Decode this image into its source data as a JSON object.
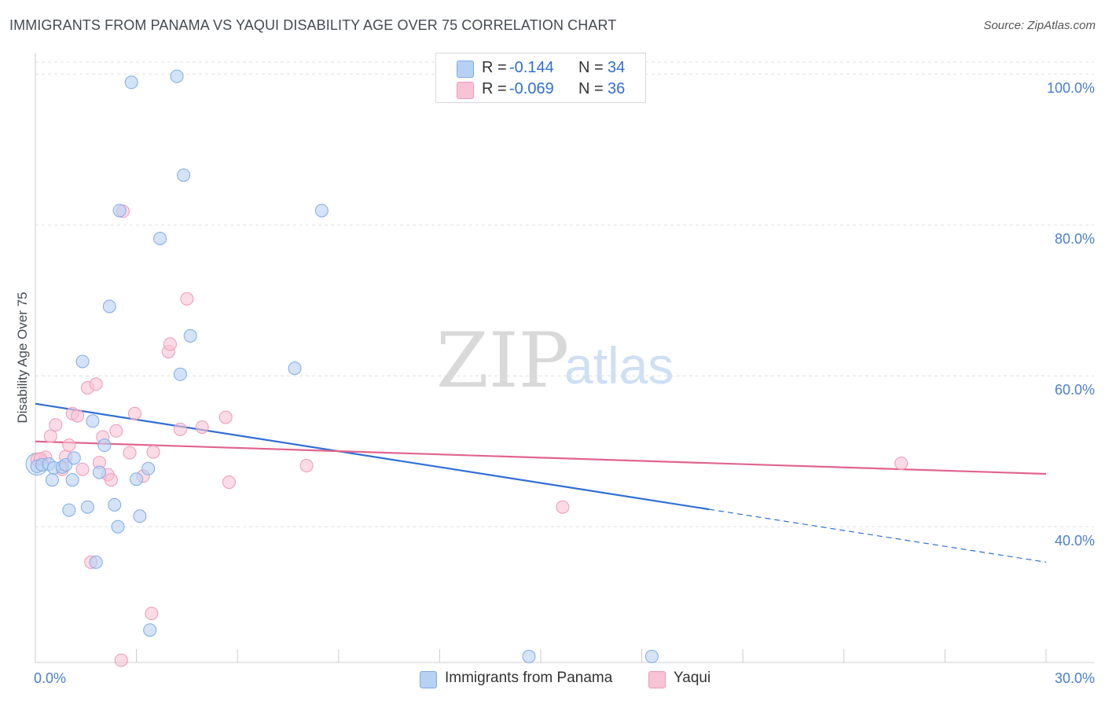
{
  "header": {
    "title": "IMMIGRANTS FROM PANAMA VS YAQUI DISABILITY AGE OVER 75 CORRELATION CHART",
    "source": "Source: ZipAtlas.com"
  },
  "watermark": {
    "zip": "ZIP",
    "atlas": "atlas"
  },
  "legend": {
    "r_label": "R =",
    "n_label": "N =",
    "series": [
      {
        "name": "Immigrants from Panama",
        "r": "-0.144",
        "n": "34"
      },
      {
        "name": "Yaqui",
        "r": "-0.069",
        "n": "36"
      }
    ]
  },
  "colors": {
    "blue_fill": "#b7d1f3",
    "blue_stroke": "#7eaae6",
    "blue_line": "#2f6fd6",
    "pink_fill": "#f8c3d4",
    "pink_stroke": "#ee9ab6",
    "pink_line": "#e0648f",
    "grid": "#e0e0e0",
    "axis_text": "#4a7fd0"
  },
  "chart_data": {
    "type": "scatter",
    "title": "IMMIGRANTS FROM PANAMA VS YAQUI DISABILITY AGE OVER 75 CORRELATION CHART",
    "xlabel": "",
    "ylabel": "Disability Age Over 75",
    "xlim": [
      0,
      30
    ],
    "ylim": [
      22,
      102
    ],
    "x_tick_labels": [
      "0.0%",
      "30.0%"
    ],
    "y_ticks": [
      {
        "value": 40,
        "label": "40.0%"
      },
      {
        "value": 60,
        "label": "60.0%"
      },
      {
        "value": 80,
        "label": "80.0%"
      },
      {
        "value": 100,
        "label": "100.0%"
      }
    ],
    "series": [
      {
        "name": "Immigrants from Panama",
        "color": "blue",
        "points": [
          {
            "x": 0.05,
            "y": 48.0
          },
          {
            "x": 0.2,
            "y": 48.2
          },
          {
            "x": 0.4,
            "y": 48.3
          },
          {
            "x": 0.55,
            "y": 47.8
          },
          {
            "x": 0.8,
            "y": 47.9
          },
          {
            "x": 0.9,
            "y": 48.2
          },
          {
            "x": 0.5,
            "y": 46.2
          },
          {
            "x": 1.15,
            "y": 49.1
          },
          {
            "x": 1.1,
            "y": 46.2
          },
          {
            "x": 1.0,
            "y": 42.2
          },
          {
            "x": 1.55,
            "y": 42.6
          },
          {
            "x": 1.4,
            "y": 61.9
          },
          {
            "x": 1.7,
            "y": 54.0
          },
          {
            "x": 1.9,
            "y": 47.2
          },
          {
            "x": 2.05,
            "y": 50.8
          },
          {
            "x": 2.2,
            "y": 69.2
          },
          {
            "x": 2.35,
            "y": 42.9
          },
          {
            "x": 2.5,
            "y": 81.9
          },
          {
            "x": 2.45,
            "y": 40.0
          },
          {
            "x": 2.85,
            "y": 98.9
          },
          {
            "x": 3.0,
            "y": 46.3
          },
          {
            "x": 3.1,
            "y": 41.4
          },
          {
            "x": 3.35,
            "y": 47.7
          },
          {
            "x": 3.4,
            "y": 26.3
          },
          {
            "x": 3.7,
            "y": 78.2
          },
          {
            "x": 4.2,
            "y": 99.7
          },
          {
            "x": 4.3,
            "y": 60.2
          },
          {
            "x": 4.4,
            "y": 86.6
          },
          {
            "x": 4.6,
            "y": 65.3
          },
          {
            "x": 7.7,
            "y": 61.0
          },
          {
            "x": 8.5,
            "y": 81.9
          },
          {
            "x": 14.65,
            "y": 22.8
          },
          {
            "x": 18.3,
            "y": 22.8
          },
          {
            "x": 1.8,
            "y": 35.3
          }
        ]
      },
      {
        "name": "Yaqui",
        "color": "pink",
        "points": [
          {
            "x": 0.05,
            "y": 48.9
          },
          {
            "x": 0.3,
            "y": 49.2
          },
          {
            "x": 0.45,
            "y": 52.0
          },
          {
            "x": 0.6,
            "y": 53.5
          },
          {
            "x": 0.8,
            "y": 47.6
          },
          {
            "x": 0.9,
            "y": 49.3
          },
          {
            "x": 1.0,
            "y": 50.8
          },
          {
            "x": 1.1,
            "y": 55.0
          },
          {
            "x": 1.25,
            "y": 54.7
          },
          {
            "x": 1.4,
            "y": 47.6
          },
          {
            "x": 1.55,
            "y": 58.4
          },
          {
            "x": 1.8,
            "y": 58.9
          },
          {
            "x": 1.9,
            "y": 48.5
          },
          {
            "x": 2.0,
            "y": 51.9
          },
          {
            "x": 2.15,
            "y": 46.9
          },
          {
            "x": 2.25,
            "y": 46.2
          },
          {
            "x": 2.4,
            "y": 52.7
          },
          {
            "x": 2.6,
            "y": 81.8
          },
          {
            "x": 2.8,
            "y": 49.8
          },
          {
            "x": 2.95,
            "y": 55.0
          },
          {
            "x": 3.2,
            "y": 46.7
          },
          {
            "x": 3.5,
            "y": 49.9
          },
          {
            "x": 3.95,
            "y": 63.2
          },
          {
            "x": 4.0,
            "y": 64.2
          },
          {
            "x": 4.3,
            "y": 52.9
          },
          {
            "x": 4.5,
            "y": 70.2
          },
          {
            "x": 4.95,
            "y": 53.2
          },
          {
            "x": 5.65,
            "y": 54.5
          },
          {
            "x": 5.75,
            "y": 45.9
          },
          {
            "x": 8.05,
            "y": 48.1
          },
          {
            "x": 15.65,
            "y": 42.6
          },
          {
            "x": 25.7,
            "y": 48.4
          },
          {
            "x": 1.65,
            "y": 35.3
          },
          {
            "x": 3.45,
            "y": 28.5
          },
          {
            "x": 2.55,
            "y": 22.3
          },
          {
            "x": 0.15,
            "y": 49.0
          }
        ]
      }
    ],
    "trend_lines": [
      {
        "series": "Immigrants from Panama",
        "x1": 0,
        "y1": 56.3,
        "x2": 20,
        "y2": 42.3,
        "dashed_to_x": 30,
        "dashed_to_y": 35.3
      },
      {
        "series": "Yaqui",
        "x1": 0,
        "y1": 51.3,
        "x2": 30,
        "y2": 47.0
      }
    ]
  }
}
